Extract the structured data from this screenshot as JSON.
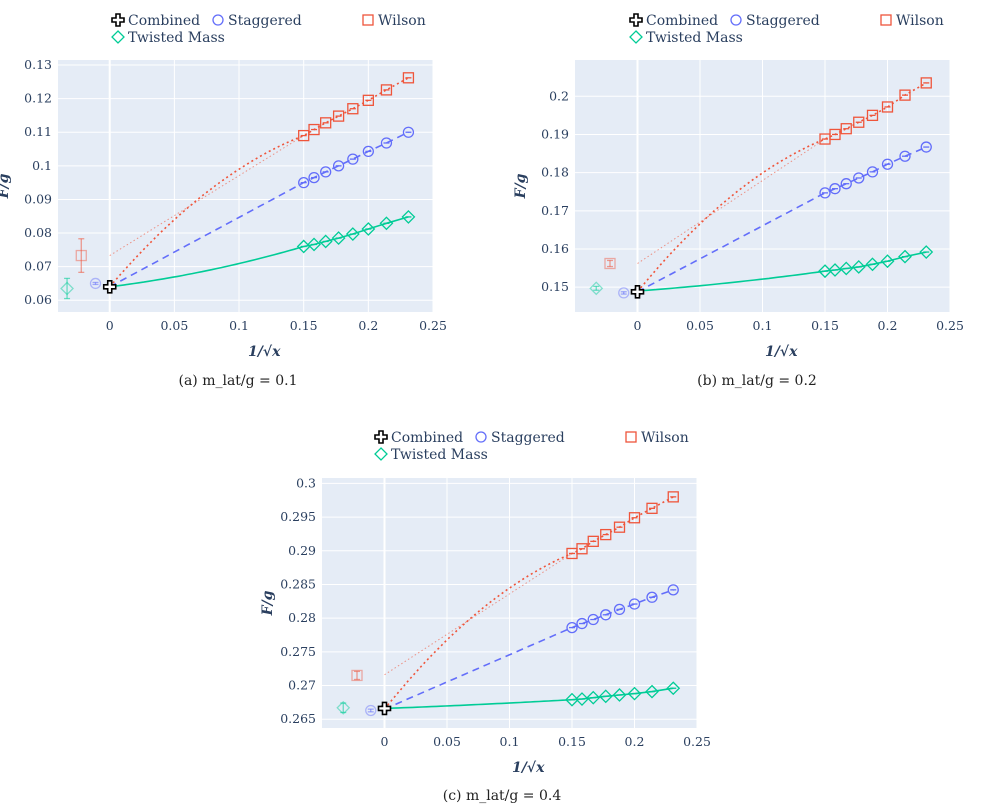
{
  "colors": {
    "combined": "#000000",
    "staggered": "#636efa",
    "wilson": "#ef553b",
    "twisted": "#00cc96",
    "plot_bg": "#e5ecf6"
  },
  "legend": {
    "combined": "Combined",
    "staggered": "Staggered",
    "wilson": "Wilson",
    "twisted": "Twisted Mass"
  },
  "chart_data": [
    {
      "type": "scatter",
      "caption": "(a) m_lat/g = 0.1",
      "xlabel": "1/√x",
      "ylabel": "F/g",
      "xlim": [
        -0.04,
        0.25
      ],
      "ylim": [
        0.0565,
        0.1315
      ],
      "xticks": [
        0,
        0.05,
        0.1,
        0.15,
        0.2,
        0.25
      ],
      "xtick_labels": [
        "0",
        "0.05",
        "0.1",
        "0.15",
        "0.2",
        "0.25"
      ],
      "yticks": [
        0.06,
        0.07,
        0.08,
        0.09,
        0.1,
        0.11,
        0.12,
        0.13
      ],
      "ytick_labels": [
        "0.06",
        "0.07",
        "0.08",
        "0.09",
        "0.1",
        "0.11",
        "0.12",
        "0.13"
      ],
      "x": [
        0.15,
        0.158,
        0.167,
        0.177,
        0.188,
        0.2,
        0.214,
        0.231
      ],
      "series": [
        {
          "name": "Staggered",
          "values": [
            0.095,
            0.0965,
            0.0982,
            0.1,
            0.102,
            0.1043,
            0.1068,
            0.11
          ],
          "fit_intercept": 0.064,
          "fit_curv": 0
        },
        {
          "name": "Wilson",
          "values": [
            0.109,
            0.1108,
            0.1128,
            0.1148,
            0.117,
            0.1195,
            0.1226,
            0.1262
          ],
          "fit_intercept": 0.064,
          "fit_curv": -0.5,
          "linear_intercept": 0.0733
        },
        {
          "name": "Twisted Mass",
          "values": [
            0.076,
            0.0766,
            0.0775,
            0.0785,
            0.0797,
            0.0812,
            0.0829,
            0.0848
          ],
          "fit_intercept": 0.064,
          "fit_curv": 0.4
        }
      ],
      "extrapolated": [
        {
          "name": "Combined",
          "x": 0.0,
          "value": 0.064,
          "err": 0.0007
        },
        {
          "name": "Staggered",
          "x": -0.011,
          "value": 0.065,
          "err": 0.0003
        },
        {
          "name": "Wilson",
          "x": -0.022,
          "value": 0.0733,
          "err": 0.005
        },
        {
          "name": "Twisted Mass",
          "x": -0.033,
          "value": 0.0635,
          "err": 0.003
        }
      ]
    },
    {
      "type": "scatter",
      "caption": "(b) m_lat/g = 0.2",
      "xlabel": "1/√x",
      "ylabel": "F/g",
      "xlim": [
        -0.05,
        0.25
      ],
      "ylim": [
        0.1435,
        0.2095
      ],
      "xticks": [
        0,
        0.05,
        0.1,
        0.15,
        0.2,
        0.25
      ],
      "xtick_labels": [
        "0",
        "0.05",
        "0.1",
        "0.15",
        "0.2",
        "0.25"
      ],
      "yticks": [
        0.15,
        0.16,
        0.17,
        0.18,
        0.19,
        0.2
      ],
      "ytick_labels": [
        "0.15",
        "0.16",
        "0.17",
        "0.18",
        "0.19",
        "0.2"
      ],
      "x": [
        0.15,
        0.158,
        0.167,
        0.177,
        0.188,
        0.2,
        0.214,
        0.231
      ],
      "series": [
        {
          "name": "Staggered",
          "values": [
            0.1747,
            0.1758,
            0.1771,
            0.1786,
            0.1802,
            0.1822,
            0.1843,
            0.1867
          ],
          "fit_intercept": 0.1488,
          "fit_curv": 0
        },
        {
          "name": "Wilson",
          "values": [
            0.1888,
            0.19,
            0.1915,
            0.1932,
            0.195,
            0.1972,
            0.2003,
            0.2035
          ],
          "fit_intercept": 0.1488,
          "fit_curv": -0.5,
          "linear_intercept": 0.1562
        },
        {
          "name": "Twisted Mass",
          "values": [
            0.1542,
            0.1545,
            0.1549,
            0.1553,
            0.156,
            0.1568,
            0.158,
            0.1592
          ],
          "fit_intercept": 0.149,
          "fit_curv": 0.3
        }
      ],
      "extrapolated": [
        {
          "name": "Combined",
          "x": 0.0,
          "value": 0.1488,
          "err": 0.0008
        },
        {
          "name": "Staggered",
          "x": -0.011,
          "value": 0.1485,
          "err": 0.0003
        },
        {
          "name": "Wilson",
          "x": -0.022,
          "value": 0.1562,
          "err": 0.0008
        },
        {
          "name": "Twisted Mass",
          "x": -0.033,
          "value": 0.1497,
          "err": 0.0005
        }
      ]
    },
    {
      "type": "scatter",
      "caption": "(c) m_lat/g = 0.4",
      "xlabel": "1/√x",
      "ylabel": "F/g",
      "xlim": [
        -0.05,
        0.25
      ],
      "ylim": [
        0.2637,
        0.3008
      ],
      "xticks": [
        0,
        0.05,
        0.1,
        0.15,
        0.2,
        0.25
      ],
      "xtick_labels": [
        "0",
        "0.05",
        "0.1",
        "0.15",
        "0.2",
        "0.25"
      ],
      "yticks": [
        0.265,
        0.27,
        0.275,
        0.28,
        0.285,
        0.29,
        0.295,
        0.3
      ],
      "ytick_labels": [
        "0.265",
        "0.27",
        "0.275",
        "0.28",
        "0.285",
        "0.29",
        "0.295",
        "0.3"
      ],
      "x": [
        0.15,
        0.158,
        0.167,
        0.177,
        0.188,
        0.2,
        0.214,
        0.231
      ],
      "series": [
        {
          "name": "Staggered",
          "values": [
            0.2786,
            0.2792,
            0.2798,
            0.2805,
            0.2813,
            0.2821,
            0.2831,
            0.2842
          ],
          "fit_intercept": 0.2665,
          "fit_curv": 0
        },
        {
          "name": "Wilson",
          "values": [
            0.2896,
            0.2903,
            0.2914,
            0.2924,
            0.2935,
            0.2949,
            0.2963,
            0.298
          ],
          "fit_intercept": 0.2665,
          "fit_curv": -0.5,
          "linear_intercept": 0.2716
        },
        {
          "name": "Twisted Mass",
          "values": [
            0.2679,
            0.268,
            0.2682,
            0.2684,
            0.2686,
            0.2688,
            0.2691,
            0.2696
          ],
          "fit_intercept": 0.2666,
          "fit_curv": 0.2
        }
      ],
      "extrapolated": [
        {
          "name": "Combined",
          "x": 0.0,
          "value": 0.2666,
          "err": 0.0004
        },
        {
          "name": "Staggered",
          "x": -0.011,
          "value": 0.2663,
          "err": 0.0002
        },
        {
          "name": "Wilson",
          "x": -0.022,
          "value": 0.2715,
          "err": 0.0006
        },
        {
          "name": "Twisted Mass",
          "x": -0.033,
          "value": 0.2667,
          "err": 0.0007
        }
      ]
    }
  ]
}
